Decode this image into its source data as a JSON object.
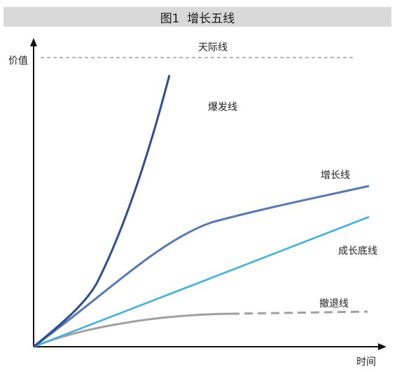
{
  "title": "图1  增长五线",
  "axes": {
    "y_label": "价值",
    "x_label": "时间"
  },
  "lines": {
    "ceiling": "天际线",
    "explosive": "爆发线",
    "growth": "增长线",
    "baseline": "成长底线",
    "retreat": "撤退线"
  },
  "colors": {
    "explosive": "#2e4c8f",
    "growth": "#5579b6",
    "baseline": "#3fb2df",
    "retreat": "#a0a0a0",
    "ceiling": "#8c8c8c",
    "axis": "#111111",
    "title_bg": "#d9d9d9"
  }
}
